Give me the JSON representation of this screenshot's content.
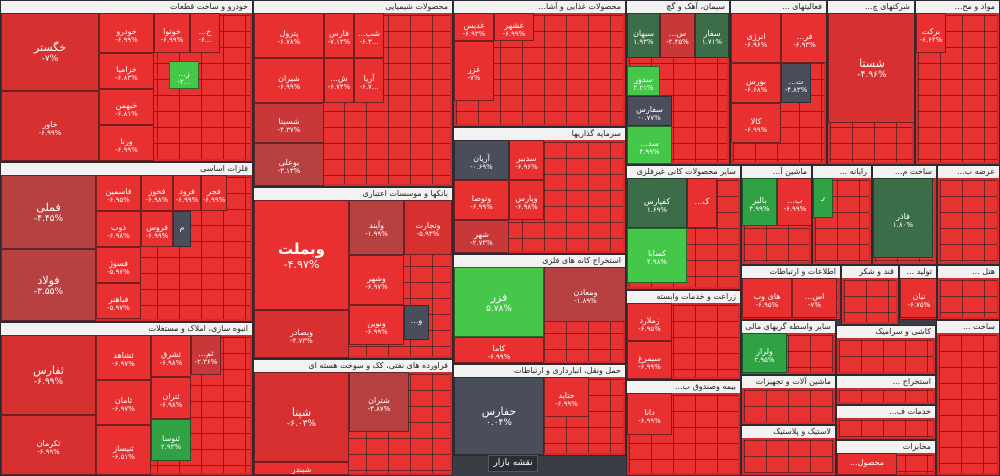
{
  "map_button": "نقشه بازار",
  "sectors": [
    {
      "id": "auto",
      "title": "خودرو و ساخت قطعات",
      "tiles": [
        {
          "n": "خگستر",
          "p": "-۷%",
          "c": "r2",
          "big": 1
        },
        {
          "n": "خاور",
          "p": "-۶.۹۹%",
          "c": "r2"
        },
        {
          "n": "خودرو",
          "p": "-۶.۹۹%",
          "c": "r1"
        },
        {
          "n": "خزامیا",
          "p": "-۶.۸۳%",
          "c": "r1"
        },
        {
          "n": "خبهمن",
          "p": "-۶.۸۱%",
          "c": "r1"
        },
        {
          "n": "ورنا",
          "p": "-۶.۹۹%",
          "c": "r1"
        },
        {
          "n": "خوتوا",
          "p": "-۶.۹۹%",
          "c": "r1"
        },
        {
          "n": "خ...",
          "p": "-۶...",
          "c": "r1"
        },
        {
          "n": "ز...",
          "p": "-۲...",
          "c": "g1"
        }
      ]
    },
    {
      "id": "metals",
      "title": "فلزات اساسی",
      "tiles": [
        {
          "n": "فملی",
          "p": "-۴.۴۵%",
          "c": "r4",
          "big": 1
        },
        {
          "n": "فولاد",
          "p": "-۳.۵۵%",
          "c": "r4",
          "big": 1
        },
        {
          "n": "فاسمین",
          "p": "-۶.۹۵%",
          "c": "r1"
        },
        {
          "n": "فخوز",
          "p": "-۶.۹۸%",
          "c": "r1"
        },
        {
          "n": "فرود",
          "p": "-۶.۹۹%",
          "c": "r1"
        },
        {
          "n": "فجر",
          "p": "-۶.۹۹%",
          "c": "r1"
        },
        {
          "n": "ذوب",
          "p": "-۶.۹۸%",
          "c": "r1"
        },
        {
          "n": "فروس",
          "p": "-۶.۹۹%",
          "c": "r1"
        },
        {
          "n": "فسوژ",
          "p": "-۵.۹۶%",
          "c": "r1"
        },
        {
          "n": "فباهنر",
          "p": "-۵.۹۷%",
          "c": "r1"
        },
        {
          "n": "م",
          "p": "",
          "c": "dk"
        }
      ]
    },
    {
      "id": "mass",
      "title": "انبوه سازی، املاک و مستغلات",
      "tiles": [
        {
          "n": "ثفارس",
          "p": "-۶.۹۹%",
          "c": "r2",
          "big": 1
        },
        {
          "n": "ثکرمان",
          "p": "-۶.۹۹%",
          "c": "r2"
        },
        {
          "n": "ثشاهد",
          "p": "-۶.۹۷%",
          "c": "r1"
        },
        {
          "n": "ثامان",
          "p": "-۶.۹۷%",
          "c": "r1"
        },
        {
          "n": "ثنیساز",
          "p": "-۶.۵۱%",
          "c": "r1"
        },
        {
          "n": "ثشرق",
          "p": "-۶.۹۸%",
          "c": "r1"
        },
        {
          "n": "ثتران",
          "p": "-۶.۹۸%",
          "c": "r1"
        },
        {
          "n": "ثنوسا",
          "p": "۲.۹۳%",
          "c": "g2"
        },
        {
          "n": "ثم...",
          "p": "-۲.۳۶%",
          "c": "r3"
        }
      ]
    },
    {
      "id": "chem",
      "title": "محصولات شیمیایی",
      "tiles": [
        {
          "n": "پترول",
          "p": "-۶.۷۸%",
          "c": "r1"
        },
        {
          "n": "شیران",
          "p": "-۶.۹۹%",
          "c": "r1"
        },
        {
          "n": "شسینا",
          "p": "-۴.۳۷%",
          "c": "r3"
        },
        {
          "n": "بوعلی",
          "p": "-۳.۱۳%",
          "c": "r4"
        },
        {
          "n": "فارس",
          "p": "-۷.۱۳%",
          "c": "r1"
        },
        {
          "n": "شب...",
          "p": "-۶.۳...",
          "c": "r1"
        },
        {
          "n": "ش...",
          "p": "-۶.۷۴%",
          "c": "r1"
        },
        {
          "n": "آریا",
          "p": "-۶.۷...",
          "c": "r1"
        }
      ]
    },
    {
      "id": "banks",
      "title": "بانکها و موسسات اعتباری",
      "tiles": [
        {
          "n": "وبملت",
          "p": "-۴.۹۷%",
          "c": "r1",
          "vbig": 1
        },
        {
          "n": "وبصادر",
          "p": "-۴.۷۳%",
          "c": "r2"
        },
        {
          "n": "وآیند",
          "p": "-۱.۹۹%",
          "c": "r4"
        },
        {
          "n": "وتجارت",
          "p": "-۵.۹۳%",
          "c": "r2"
        },
        {
          "n": "وشهر",
          "p": "-۶.۹۷%",
          "c": "r1"
        },
        {
          "n": "ونوین",
          "p": "-۶.۹۹%",
          "c": "r1"
        },
        {
          "n": "و...",
          "p": "",
          "c": "dk"
        }
      ]
    },
    {
      "id": "refinery",
      "title": "فراورده های نفتی، کک و سوخت هسته ای",
      "tiles": [
        {
          "n": "شپنا",
          "p": "-۶.۰۳%",
          "c": "r2",
          "big": 1
        },
        {
          "n": "شبندر",
          "p": "-۶.۷۴%",
          "c": "r1"
        },
        {
          "n": "شتران",
          "p": "-۳.۸۷%",
          "c": "r4"
        }
      ]
    },
    {
      "id": "food",
      "title": "محصولات غذایی و آشا...",
      "tiles": [
        {
          "n": "غدیس",
          "p": "-۶.۹۳%",
          "c": "r1"
        },
        {
          "n": "غشهر",
          "p": "-۶.۹۹%",
          "c": "r1"
        },
        {
          "n": "غزر",
          "p": "-۷%",
          "c": "r1"
        }
      ]
    },
    {
      "id": "invest",
      "title": "سرمایه گذاریها",
      "tiles": [
        {
          "n": "آریان",
          "p": "-۰.۶۹%",
          "c": "dk"
        },
        {
          "n": "وتوصا",
          "p": "-۶.۹۹%",
          "c": "r1"
        },
        {
          "n": "شهر",
          "p": "-۲.۷۳%",
          "c": "r3"
        },
        {
          "n": "سدبیر",
          "p": "-۶.۹۶%",
          "c": "r1"
        },
        {
          "n": "وپارس",
          "p": "-۶.۹۸%",
          "c": "r1"
        }
      ]
    },
    {
      "id": "mining",
      "title": "استخراج کانه های فلزی",
      "tiles": [
        {
          "n": "فزر",
          "p": "۵.۷۸%",
          "c": "g1",
          "big": 1
        },
        {
          "n": "ومعادن",
          "p": "-۱.۸۹%",
          "c": "r4"
        },
        {
          "n": "کاما",
          "p": "-۶.۹۹%",
          "c": "r1"
        }
      ]
    },
    {
      "id": "transport",
      "title": "حمل ونقل، انبارداری و ارتباطات",
      "tiles": [
        {
          "n": "حفارس",
          "p": "۰.۰۴%",
          "c": "dk",
          "big": 1
        },
        {
          "n": "حتاید",
          "p": "-۶.۹۹%",
          "c": "r1"
        }
      ]
    },
    {
      "id": "cement",
      "title": "سیمان، آهک و گچ",
      "tiles": [
        {
          "n": "سبهان",
          "p": "۱.۹۳%",
          "c": "g3"
        },
        {
          "n": "س...",
          "p": "-۲.۴۵%",
          "c": "r3"
        },
        {
          "n": "سفار",
          "p": "۱.۷۱%",
          "c": "g3"
        },
        {
          "n": "سدور",
          "p": "۲.۲۱%",
          "c": "g1"
        },
        {
          "n": "سفارس",
          "p": "-۰.۷۷%",
          "c": "dk"
        },
        {
          "n": "سد...",
          "p": "۴.۹۹%",
          "c": "g1"
        }
      ]
    },
    {
      "id": "nonmetal",
      "title": "سایر محصولات کانی غیرفلزی",
      "tiles": [
        {
          "n": "کفپارس",
          "p": "۱.۶۹%",
          "c": "g3"
        },
        {
          "n": "کسابا",
          "p": "۴.۹۸%",
          "c": "g1"
        },
        {
          "n": "ک...",
          "p": "",
          "c": "r1"
        }
      ]
    },
    {
      "id": "agri",
      "title": "زراعت و خدمات وابسته",
      "tiles": [
        {
          "n": "زملارد",
          "p": "-۶.۹۵%",
          "c": "r1"
        },
        {
          "n": "سیمرغ",
          "p": "-۶.۹۹%",
          "c": "r1"
        }
      ]
    },
    {
      "id": "insure",
      "title": "بیمه وصندوق ب...",
      "tiles": [
        {
          "n": "دانا",
          "p": "-۶.۹۹%",
          "c": "r1"
        }
      ]
    },
    {
      "id": "activities",
      "title": "فعالیتهای ...",
      "tiles": [
        {
          "n": "انرژی",
          "p": "-۶.۹۶%",
          "c": "r1"
        },
        {
          "n": "فر...",
          "p": "-۶.۹۳%",
          "c": "r1"
        },
        {
          "n": "بورس",
          "p": "-۶.۶۸%",
          "c": "r1"
        },
        {
          "n": "ت...",
          "p": "-۴.۸۳%",
          "c": "dk"
        },
        {
          "n": "کالا",
          "p": "-۶.۹۹%",
          "c": "r1"
        }
      ]
    },
    {
      "id": "holding",
      "title": "شرکتهای چ...",
      "tiles": [
        {
          "n": "شستا",
          "p": "-۴.۹۶%",
          "c": "r2",
          "big": 1
        }
      ]
    },
    {
      "id": "materials",
      "title": "مواد و مح...",
      "tiles": [
        {
          "n": "برکت",
          "p": "-۶.۶۴%",
          "c": "r1"
        }
      ]
    },
    {
      "id": "machinery",
      "title": "ماشین آ...",
      "tiles": [
        {
          "n": "بالبر",
          "p": "۴.۹۹%",
          "c": "g2"
        },
        {
          "n": "ب...",
          "p": "-۶.۹۹%",
          "c": "r1"
        }
      ]
    },
    {
      "id": "computer",
      "title": "رایانه ...",
      "tiles": [
        {
          "n": "ر",
          "p": "",
          "c": "g2"
        }
      ]
    },
    {
      "id": "build",
      "title": "ساخت م...",
      "tiles": [
        {
          "n": "فاذر",
          "p": "۱.۸۰%",
          "c": "g3"
        }
      ]
    },
    {
      "id": "telecom",
      "title": "اطلاعات و ارتباطات",
      "tiles": [
        {
          "n": "های وب",
          "p": "-۶.۹۵%",
          "c": "r1"
        },
        {
          "n": "اس...",
          "p": "-۷%",
          "c": "r1"
        }
      ]
    },
    {
      "id": "fin",
      "title": "سایر واسطه گریهای مالی",
      "tiles": [
        {
          "n": "ولراز",
          "p": "۲.۹۵%",
          "c": "g2"
        }
      ]
    },
    {
      "id": "equip",
      "title": "ماشین آلات و تجهیزات",
      "tiles": []
    },
    {
      "id": "rubber",
      "title": "لاستیک و پلاستیک",
      "tiles": []
    },
    {
      "id": "sugar",
      "title": "قند و شکر",
      "tiles": []
    },
    {
      "id": "ceramic",
      "title": "کاشی و سرامیک",
      "tiles": []
    },
    {
      "id": "hotel",
      "title": "هتل ...",
      "tiles": []
    },
    {
      "id": "prod",
      "title": "تولید ...",
      "tiles": [
        {
          "n": "نیان",
          "p": "-۶.۷۵%",
          "c": "r1"
        }
      ]
    },
    {
      "id": "services",
      "title": "خدمات ف...",
      "tiles": []
    },
    {
      "id": "pharma",
      "title": "مخابرات",
      "tiles": [
        {
          "n": "محصول...",
          "p": "",
          "c": "r1"
        }
      ]
    },
    {
      "id": "extract",
      "title": "استخراج ...",
      "tiles": []
    },
    {
      "id": "fashion",
      "title": "ساخت ...",
      "tiles": []
    },
    {
      "id": "misc",
      "title": "عرضه ب...",
      "tiles": []
    }
  ]
}
